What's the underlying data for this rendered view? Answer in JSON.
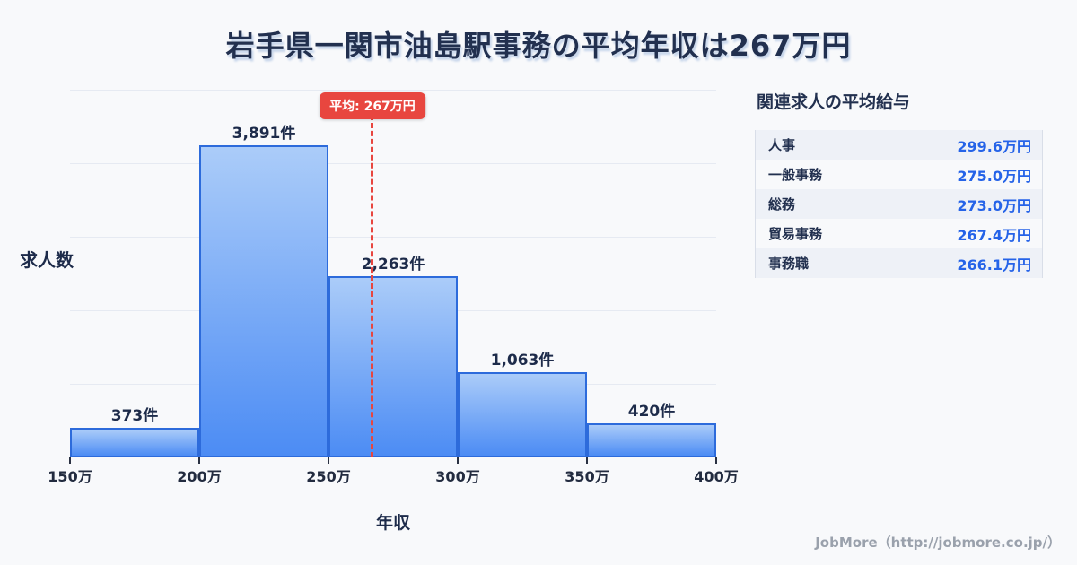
{
  "title": "岩手県一関市油島駅事務の平均年収は267万円",
  "chart_data": {
    "type": "bar",
    "title": "岩手県一関市油島駅事務の平均年収は267万円",
    "xlabel": "年収",
    "ylabel": "求人数",
    "unit": "件",
    "x_range": [
      150,
      400
    ],
    "bin_width": 50,
    "x_ticks": [
      "150万",
      "200万",
      "250万",
      "300万",
      "350万",
      "400万"
    ],
    "categories": [
      "150万〜200万",
      "200万〜250万",
      "250万〜300万",
      "300万〜350万",
      "350万〜400万"
    ],
    "values": [
      373,
      3891,
      2263,
      1063,
      420
    ],
    "bar_labels": [
      "373件",
      "3,891件",
      "2,263件",
      "1,063件",
      "420件"
    ],
    "average": {
      "value": 267,
      "label": "平均: 267万円"
    },
    "grid": true
  },
  "side_panel": {
    "title": "関連求人の平均給与",
    "rows": [
      {
        "label": "人事",
        "value": "299.6万円"
      },
      {
        "label": "一般事務",
        "value": "275.0万円"
      },
      {
        "label": "総務",
        "value": "273.0万円"
      },
      {
        "label": "貿易事務",
        "value": "267.4万円"
      },
      {
        "label": "事務職",
        "value": "266.1万円"
      }
    ]
  },
  "footer": {
    "credit": "JobMore（http://jobmore.co.jp/）"
  },
  "colors": {
    "accent_red": "#e8463f",
    "bar_fill_top": "#abccf9",
    "bar_fill_bottom": "#4c8cf4",
    "bar_border": "#2d6bdb",
    "value_blue": "#2563e8",
    "title_navy": "#22304f",
    "background": "#f8f9fb"
  }
}
